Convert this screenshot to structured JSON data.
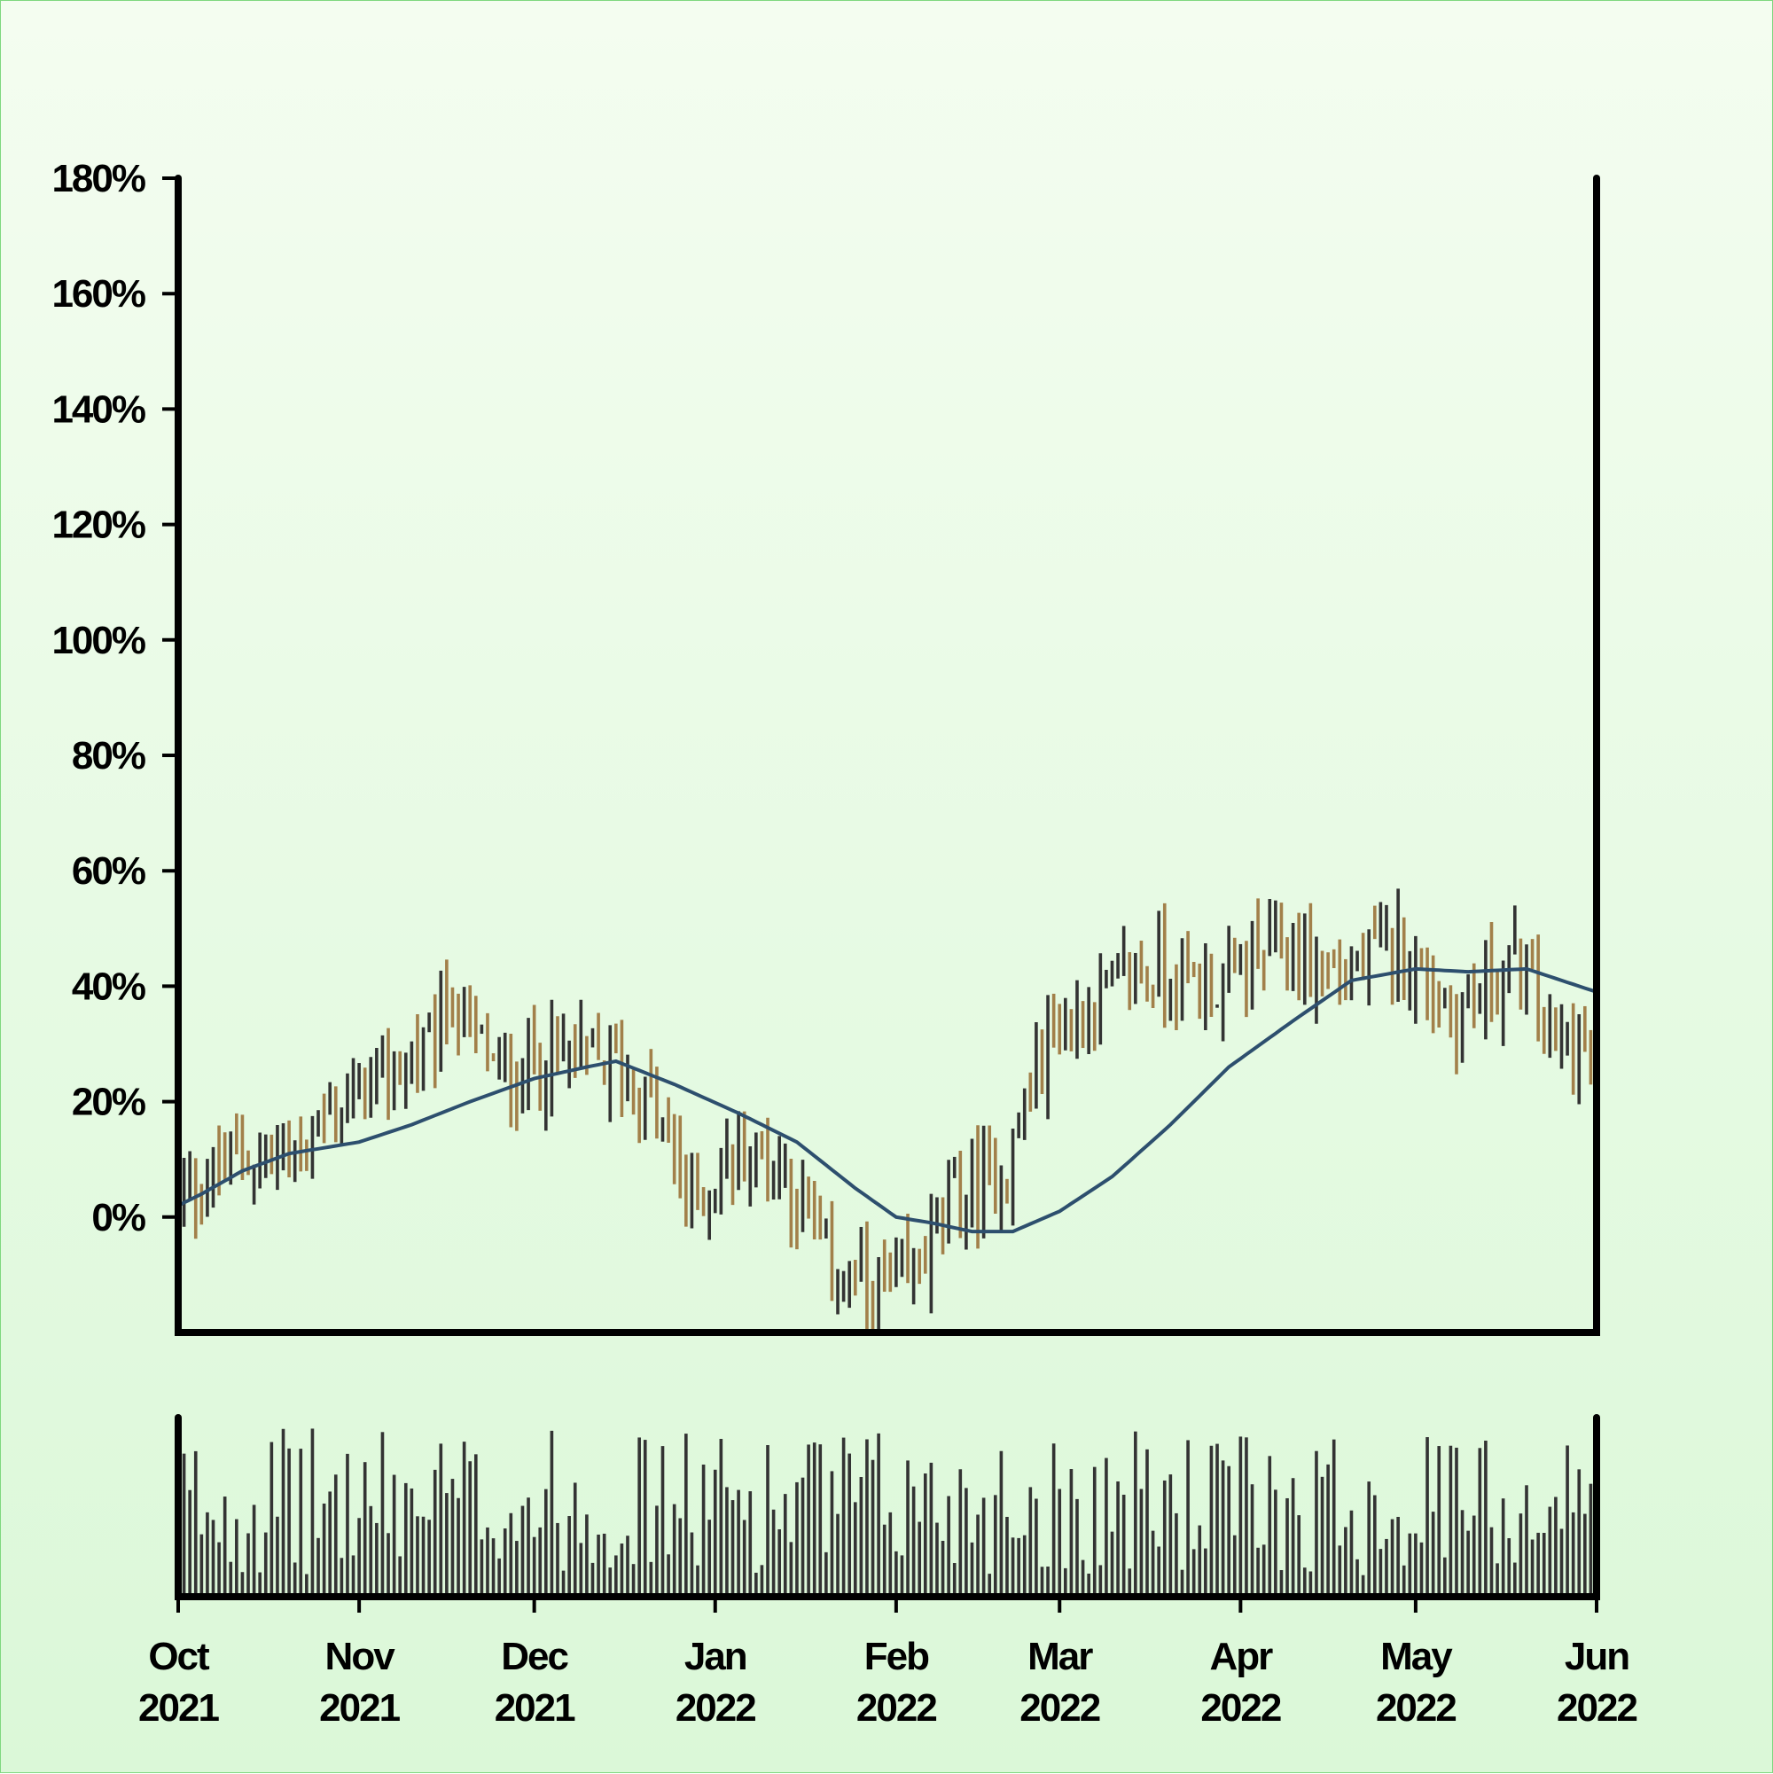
{
  "chart_data": {
    "type": "ohlc",
    "price_panel": {
      "y_ticks": [
        "180%",
        "160%",
        "140%",
        "120%",
        "100%",
        "80%",
        "60%",
        "40%",
        "20%",
        "0%"
      ],
      "ylim": [
        -20,
        180
      ],
      "x_ticks": [
        {
          "month": "Oct",
          "year": "2021",
          "date": "2021-10-01"
        },
        {
          "month": "Nov",
          "year": "2021",
          "date": "2021-11-01"
        },
        {
          "month": "Dec",
          "year": "2021",
          "date": "2021-12-01"
        },
        {
          "month": "Jan",
          "year": "2022",
          "date": "2022-01-01"
        },
        {
          "month": "Feb",
          "year": "2022",
          "date": "2022-02-01"
        },
        {
          "month": "Mar",
          "year": "2022",
          "date": "2022-03-01"
        },
        {
          "month": "Apr",
          "year": "2022",
          "date": "2022-04-01"
        },
        {
          "month": "May",
          "year": "2022",
          "date": "2022-05-01"
        },
        {
          "month": "Jun",
          "year": "2022",
          "date": "2022-06-01"
        }
      ],
      "xlim": [
        "2021-10-01",
        "2022-06-01"
      ],
      "bar_interval_days": 1,
      "close_anchor_points": [
        {
          "date": "2021-10-01",
          "close": 2
        },
        {
          "date": "2021-10-10",
          "close": 10
        },
        {
          "date": "2021-10-20",
          "close": 11
        },
        {
          "date": "2021-11-01",
          "close": 22
        },
        {
          "date": "2021-11-12",
          "close": 28
        },
        {
          "date": "2021-11-17",
          "close": 38
        },
        {
          "date": "2021-11-25",
          "close": 24
        },
        {
          "date": "2021-12-05",
          "close": 28
        },
        {
          "date": "2021-12-15",
          "close": 26
        },
        {
          "date": "2021-12-22",
          "close": 18
        },
        {
          "date": "2021-12-28",
          "close": 2
        },
        {
          "date": "2022-01-05",
          "close": 12
        },
        {
          "date": "2022-01-12",
          "close": 10
        },
        {
          "date": "2022-01-20",
          "close": -8
        },
        {
          "date": "2022-01-28",
          "close": -14
        },
        {
          "date": "2022-02-03",
          "close": -12
        },
        {
          "date": "2022-02-10",
          "close": 2
        },
        {
          "date": "2022-02-20",
          "close": 8
        },
        {
          "date": "2022-02-27",
          "close": 32
        },
        {
          "date": "2022-03-05",
          "close": 35
        },
        {
          "date": "2022-03-15",
          "close": 43
        },
        {
          "date": "2022-03-28",
          "close": 40
        },
        {
          "date": "2022-04-08",
          "close": 47
        },
        {
          "date": "2022-04-18",
          "close": 42
        },
        {
          "date": "2022-04-28",
          "close": 47
        },
        {
          "date": "2022-05-08",
          "close": 35
        },
        {
          "date": "2022-05-18",
          "close": 44
        },
        {
          "date": "2022-05-25",
          "close": 30
        },
        {
          "date": "2022-06-01",
          "close": 27
        }
      ],
      "moving_average": [
        {
          "date": "2021-10-01",
          "value": 2
        },
        {
          "date": "2021-10-05",
          "value": 4
        },
        {
          "date": "2021-10-12",
          "value": 8
        },
        {
          "date": "2021-10-20",
          "value": 11
        },
        {
          "date": "2021-11-01",
          "value": 13
        },
        {
          "date": "2021-11-10",
          "value": 16
        },
        {
          "date": "2021-11-20",
          "value": 20
        },
        {
          "date": "2021-12-01",
          "value": 24
        },
        {
          "date": "2021-12-10",
          "value": 26
        },
        {
          "date": "2021-12-15",
          "value": 27
        },
        {
          "date": "2021-12-25",
          "value": 23
        },
        {
          "date": "2022-01-05",
          "value": 18
        },
        {
          "date": "2022-01-15",
          "value": 13
        },
        {
          "date": "2022-01-25",
          "value": 5
        },
        {
          "date": "2022-02-01",
          "value": 0
        },
        {
          "date": "2022-02-07",
          "value": -1
        },
        {
          "date": "2022-02-14",
          "value": -2.5
        },
        {
          "date": "2022-02-21",
          "value": -2.5
        },
        {
          "date": "2022-03-01",
          "value": 1
        },
        {
          "date": "2022-03-10",
          "value": 7
        },
        {
          "date": "2022-03-20",
          "value": 16
        },
        {
          "date": "2022-03-30",
          "value": 26
        },
        {
          "date": "2022-04-10",
          "value": 34
        },
        {
          "date": "2022-04-20",
          "value": 41
        },
        {
          "date": "2022-05-01",
          "value": 43
        },
        {
          "date": "2022-05-10",
          "value": 42.5
        },
        {
          "date": "2022-05-20",
          "value": 43
        },
        {
          "date": "2022-06-01",
          "value": 39
        }
      ],
      "up_color": "#333333",
      "down_color": "#a2804a",
      "ma_color": "#2d4f6e"
    },
    "volume_panel": {
      "bar_color": "#333333"
    }
  }
}
